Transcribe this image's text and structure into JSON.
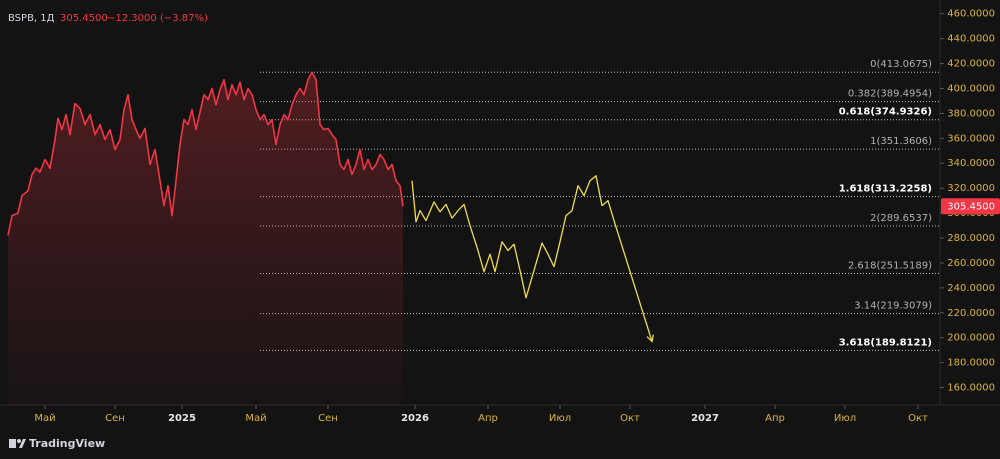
{
  "chart_data": {
    "type": "line",
    "header": {
      "title": "BSPB, 1Д",
      "change": "−12.3000 (−3.87%)"
    },
    "last_price": {
      "value": 305.45,
      "label": "305.4500"
    },
    "watermark": "TradingView",
    "ylim": [
      146,
      471
    ],
    "yticks": [
      {
        "value": 160,
        "label": "160.0000"
      },
      {
        "value": 180,
        "label": "180.0000"
      },
      {
        "value": 200,
        "label": "200.0000"
      },
      {
        "value": 220,
        "label": "220.0000"
      },
      {
        "value": 240,
        "label": "240.0000"
      },
      {
        "value": 260,
        "label": "260.0000"
      },
      {
        "value": 280,
        "label": "280.0000"
      },
      {
        "value": 300,
        "label": "300.0000"
      },
      {
        "value": 320,
        "label": "320.0000"
      },
      {
        "value": 340,
        "label": "340.0000"
      },
      {
        "value": 360,
        "label": "360.0000"
      },
      {
        "value": 380,
        "label": "380.0000"
      },
      {
        "value": 400,
        "label": "400.0000"
      },
      {
        "value": 420,
        "label": "420.0000"
      },
      {
        "value": 440,
        "label": "440.0000"
      },
      {
        "value": 460,
        "label": "460.0000"
      }
    ],
    "xlim": [
      0,
      940
    ],
    "xticks": [
      {
        "value": 45,
        "label": "Май"
      },
      {
        "value": 115,
        "label": "Сен"
      },
      {
        "value": 182,
        "label": "2025"
      },
      {
        "value": 256,
        "label": "Май"
      },
      {
        "value": 328,
        "label": "Сен"
      },
      {
        "value": 415,
        "label": "2026"
      },
      {
        "value": 488,
        "label": "Апр"
      },
      {
        "value": 560,
        "label": "Июл"
      },
      {
        "value": 630,
        "label": "Окт"
      },
      {
        "value": 705,
        "label": "2027"
      },
      {
        "value": 775,
        "label": "Апр"
      },
      {
        "value": 845,
        "label": "Июл"
      },
      {
        "value": 918,
        "label": "Окт"
      }
    ],
    "fib_levels": [
      {
        "value": 413.0675,
        "label": "0(413.0675)",
        "bold": false
      },
      {
        "value": 389.4954,
        "label": "0.382(389.4954)",
        "bold": false
      },
      {
        "value": 374.9326,
        "label": "0.618(374.9326)",
        "bold": true
      },
      {
        "value": 351.3606,
        "label": "1(351.3606)",
        "bold": false
      },
      {
        "value": 313.2258,
        "label": "1.618(313.2258)",
        "bold": true
      },
      {
        "value": 289.6537,
        "label": "2(289.6537)",
        "bold": false
      },
      {
        "value": 251.5189,
        "label": "2.618(251.5189)",
        "bold": false
      },
      {
        "value": 219.3079,
        "label": "3.14(219.3079)",
        "bold": false
      },
      {
        "value": 189.8121,
        "label": "3.618(189.8121)",
        "bold": true
      }
    ],
    "fib_start": 260,
    "series": [
      {
        "color": "#f23645",
        "area": true,
        "x": [
          8,
          12,
          18,
          22,
          28,
          32,
          36,
          40,
          45,
          50,
          55,
          58,
          62,
          66,
          70,
          75,
          80,
          85,
          90,
          95,
          100,
          105,
          110,
          115,
          120,
          124,
          128,
          132,
          136,
          140,
          145,
          150,
          155,
          160,
          164,
          168,
          172,
          176,
          180,
          184,
          188,
          192,
          196,
          200,
          204,
          208,
          212,
          216,
          220,
          224,
          228,
          232,
          236,
          240,
          244,
          248,
          252,
          256,
          260,
          264,
          268,
          272,
          276,
          280,
          284,
          288,
          292,
          296,
          300,
          304,
          308,
          312,
          316,
          320,
          324,
          328,
          332,
          336,
          340,
          344,
          348,
          352,
          356,
          360,
          364,
          368,
          372,
          376,
          380,
          384,
          388,
          392,
          396,
          400,
          403
        ],
        "values": [
          282,
          298,
          300,
          314,
          318,
          331,
          336,
          333,
          343,
          336,
          359,
          376,
          367,
          379,
          363,
          388,
          384,
          371,
          379,
          363,
          371,
          359,
          367,
          351,
          359,
          383,
          395,
          375,
          367,
          360,
          368,
          339,
          351,
          326,
          306,
          322,
          298,
          326,
          355,
          375,
          371,
          383,
          367,
          381,
          395,
          391,
          400,
          387,
          399,
          407,
          391,
          403,
          395,
          405,
          391,
          400,
          395,
          383,
          375,
          379,
          371,
          375,
          355,
          371,
          379,
          375,
          387,
          395,
          400,
          395,
          407,
          413,
          407,
          371,
          367,
          368,
          363,
          359,
          339,
          335,
          343,
          331,
          339,
          351,
          335,
          343,
          335,
          339,
          347,
          343,
          335,
          339,
          326,
          322,
          305.45
        ]
      },
      {
        "color": "#f0dc4a",
        "area": false,
        "arrow": true,
        "x": [
          412,
          416,
          420,
          426,
          434,
          440,
          446,
          452,
          458,
          464,
          470,
          478,
          484,
          490,
          495,
          502,
          508,
          514,
          520,
          526,
          534,
          542,
          548,
          554,
          560,
          566,
          572,
          578,
          584,
          590,
          596,
          602,
          608,
          614,
          652
        ],
        "values": [
          326,
          293,
          302,
          294,
          309,
          301,
          307,
          296,
          302,
          307,
          290,
          270,
          253,
          267,
          253,
          277,
          270,
          275,
          254,
          232,
          254,
          276,
          267,
          257,
          277,
          298,
          302,
          322,
          314,
          326,
          330,
          306,
          310,
          294,
          197
        ]
      }
    ]
  }
}
